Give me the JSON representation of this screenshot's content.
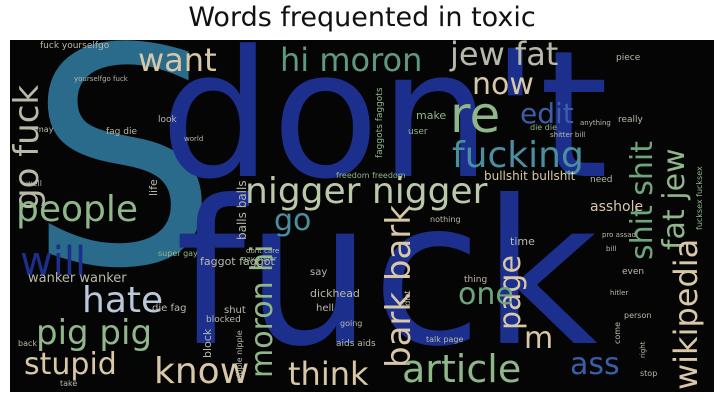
{
  "title": "Words frequented in toxic",
  "colors": {
    "background": "#050505",
    "blue_dark": "#1d2f8c",
    "blue_teal": "#2a6a8a",
    "green": "#6fa57a",
    "sage": "#8fb78a",
    "beige": "#d8c8a8",
    "gray": "#b9b9a9"
  },
  "words": [
    {
      "text": "S",
      "color": "#2a6a8a"
    },
    {
      "text": "don't",
      "color": "#1d2f8c"
    },
    {
      "text": "fuck",
      "color": "#1d2f8c"
    },
    {
      "text": "want",
      "color": "#d8c8a8"
    },
    {
      "text": "hi moron",
      "color": "#5e9a80"
    },
    {
      "text": "jew fat",
      "color": "#b9b9a9"
    },
    {
      "text": "fat jew",
      "color": "#8fb78a"
    },
    {
      "text": "go fuck",
      "color": "#b9b9a9"
    },
    {
      "text": "now",
      "color": "#d8c8a8"
    },
    {
      "text": "re",
      "color": "#8fb78a"
    },
    {
      "text": "edit",
      "color": "#3a5fa8"
    },
    {
      "text": "fucking",
      "color": "#4a8fa0"
    },
    {
      "text": "shit shit",
      "color": "#6fa57a"
    },
    {
      "text": "nigger nigger",
      "color": "#b9c9a9"
    },
    {
      "text": "people",
      "color": "#8fb78a"
    },
    {
      "text": "will",
      "color": "#1d2f8c"
    },
    {
      "text": "go",
      "color": "#4a8fa0"
    },
    {
      "text": "bark bark",
      "color": "#d8c8a8"
    },
    {
      "text": "page",
      "color": "#d8c8a8"
    },
    {
      "text": "hate",
      "color": "#b9c9d9"
    },
    {
      "text": "pig pig",
      "color": "#8fb78a"
    },
    {
      "text": "stupid",
      "color": "#d8c8a8"
    },
    {
      "text": "know",
      "color": "#d8c8a8"
    },
    {
      "text": "moron hi",
      "color": "#8fb78a"
    },
    {
      "text": "one",
      "color": "#6fa57a"
    },
    {
      "text": "wikipedia",
      "color": "#d8c8a8"
    },
    {
      "text": "m",
      "color": "#d8c8a8"
    },
    {
      "text": "think",
      "color": "#d8c8a8"
    },
    {
      "text": "article",
      "color": "#8fb78a"
    },
    {
      "text": "ass",
      "color": "#3a5fa8"
    },
    {
      "text": "bullshit bullshit",
      "color": "#d8c8a8"
    },
    {
      "text": "asshole",
      "color": "#d8c8a8"
    },
    {
      "text": "balls balls",
      "color": "#b9b9a9"
    },
    {
      "text": "wanker wanker",
      "color": "#b9b9a9"
    },
    {
      "text": "faggot faggot",
      "color": "#b9b9a9"
    },
    {
      "text": "dickhead",
      "color": "#b9b9a9"
    },
    {
      "text": "faggots faggots",
      "color": "#8fb78a"
    },
    {
      "text": "freedom freedom",
      "color": "#8fb78a"
    },
    {
      "text": "fuck yourselfgo",
      "color": "#b9b9a9"
    },
    {
      "text": "fag die",
      "color": "#b9b9a9"
    },
    {
      "text": "die fag",
      "color": "#b9b9a9"
    },
    {
      "text": "block",
      "color": "#b9b9a9"
    },
    {
      "text": "nipple nipple",
      "color": "#b9b9a9"
    },
    {
      "text": "life",
      "color": "#b9b9a9"
    },
    {
      "text": "say",
      "color": "#b9b9a9"
    },
    {
      "text": "shut",
      "color": "#b9b9a9"
    },
    {
      "text": "hell",
      "color": "#b9b9a9"
    },
    {
      "text": "time",
      "color": "#b9b9a9"
    },
    {
      "text": "need",
      "color": "#b9b9a9"
    },
    {
      "text": "make",
      "color": "#8fb78a"
    },
    {
      "text": "user",
      "color": "#8fb78a"
    },
    {
      "text": "talk page",
      "color": "#b9b9a9"
    },
    {
      "text": "aids aids",
      "color": "#b9b9a9"
    },
    {
      "text": "going",
      "color": "#b9b9a9"
    },
    {
      "text": "thing",
      "color": "#b9b9a9"
    },
    {
      "text": "even",
      "color": "#b9b9a9"
    },
    {
      "text": "person",
      "color": "#b9b9a9"
    },
    {
      "text": "fucksex fucksex",
      "color": "#8fb78a"
    },
    {
      "text": "piece",
      "color": "#b9b9a9"
    },
    {
      "text": "really",
      "color": "#b9b9a9"
    },
    {
      "text": "stop",
      "color": "#b9b9a9"
    },
    {
      "text": "look",
      "color": "#b9b9a9"
    },
    {
      "text": "world",
      "color": "#b9b9a9"
    },
    {
      "text": "nothing",
      "color": "#b9b9a9"
    },
    {
      "text": "may",
      "color": "#b9b9a9"
    },
    {
      "text": "yourselfgo fuck",
      "color": "#b9b9a9"
    },
    {
      "text": "back",
      "color": "#b9b9a9"
    },
    {
      "text": "take",
      "color": "#b9b9a9"
    },
    {
      "text": "super gay",
      "color": "#8fb78a"
    },
    {
      "text": "gay super",
      "color": "#8fb78a"
    },
    {
      "text": "blocked",
      "color": "#b9b9a9"
    },
    {
      "text": "well",
      "color": "#b9b9a9"
    },
    {
      "text": "idiot",
      "color": "#b9b9a9"
    },
    {
      "text": "dont care",
      "color": "#b9b9a9"
    },
    {
      "text": "pro assad",
      "color": "#b9b9a9"
    },
    {
      "text": "come",
      "color": "#b9b9a9"
    },
    {
      "text": "right",
      "color": "#b9b9a9"
    },
    {
      "text": "shitter bill",
      "color": "#b9b9a9"
    },
    {
      "text": "die die",
      "color": "#8fb78a"
    },
    {
      "text": "anything",
      "color": "#b9b9a9"
    },
    {
      "text": "bill",
      "color": "#b9b9a9"
    },
    {
      "text": "hitler",
      "color": "#b9b9a9"
    }
  ]
}
